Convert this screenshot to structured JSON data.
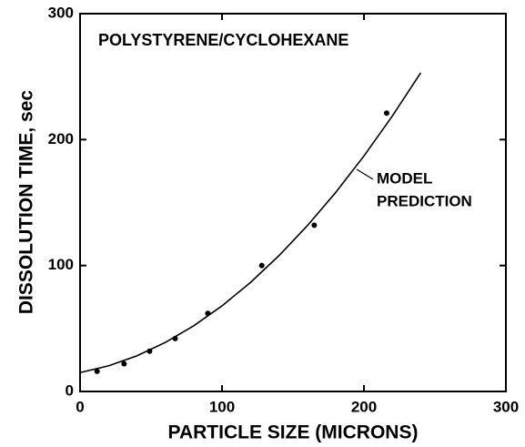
{
  "chart_data": {
    "type": "scatter",
    "title": "POLYSTYRENE/CYCLOHEXANE",
    "x_label": "PARTICLE SIZE (MICRONS)",
    "y_label": "DISSOLUTION TIME, sec",
    "annotation": [
      "MODEL",
      "PREDICTION"
    ],
    "x": [
      12,
      31,
      49,
      67,
      90,
      128,
      165,
      216
    ],
    "values": [
      16,
      22,
      32,
      42,
      62,
      100,
      132,
      221
    ],
    "color": "#000000",
    "curve": {
      "x": [
        0,
        20,
        40,
        60,
        80,
        100,
        120,
        140,
        160,
        180,
        200,
        220,
        240
      ],
      "values": [
        15,
        20.3,
        28.3,
        38.9,
        52.1,
        68,
        86.5,
        107.7,
        131.5,
        157.9,
        187,
        218.7,
        253.1
      ]
    },
    "xlim": [
      0,
      300
    ],
    "xticks": [
      0,
      100,
      200,
      300
    ],
    "ylim": [
      0,
      300
    ],
    "yticks": [
      0,
      100,
      200,
      300
    ]
  }
}
